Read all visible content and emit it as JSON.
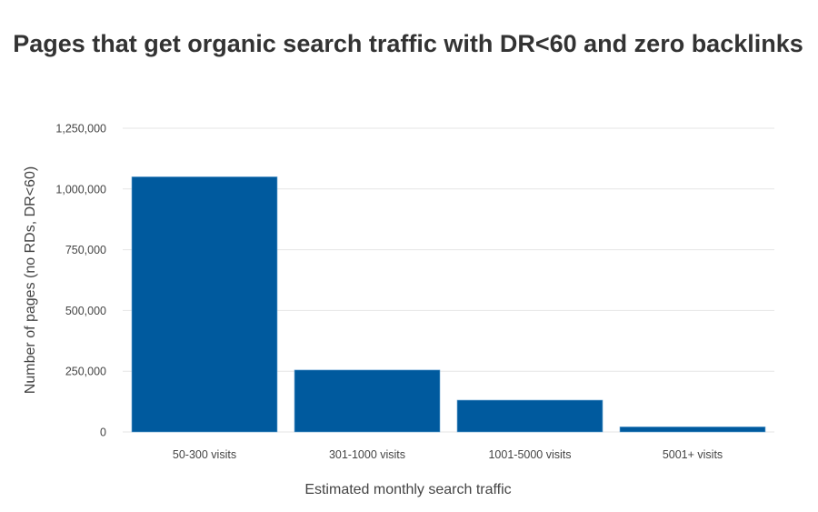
{
  "chart_data": {
    "type": "bar",
    "title": "Pages that get organic search traffic with DR<60 and zero backlinks",
    "xlabel": "Estimated monthly search traffic",
    "ylabel": "Number of pages (no RDs, DR<60)",
    "categories": [
      "50-300 visits",
      "301-1000 visits",
      "1001-5000 visits",
      "5001+ visits"
    ],
    "values": [
      1050000,
      255000,
      131000,
      21000
    ],
    "ylim": [
      0,
      1250000
    ],
    "yticks": [
      0,
      250000,
      500000,
      750000,
      1000000,
      1250000
    ],
    "ytick_labels": [
      "0",
      "250,000",
      "500,000",
      "750,000",
      "1,000,000",
      "1,250,000"
    ],
    "grid": true,
    "legend": "none",
    "colors": {
      "bar": "#005a9e",
      "grid": "#e6e6e6",
      "text": "#333333"
    }
  }
}
